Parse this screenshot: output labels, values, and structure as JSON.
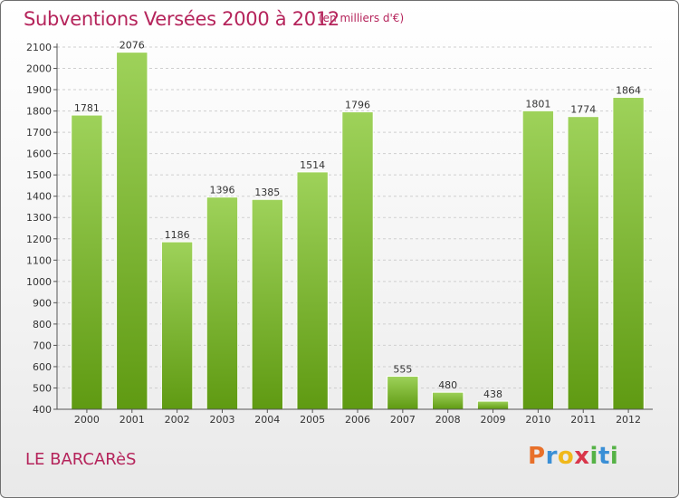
{
  "header": {
    "title": "Subventions Versées 2000 à 2012",
    "unit": "(en milliers d'€)"
  },
  "footer": {
    "place": "LE BARCARèS",
    "logo": "Proxiti"
  },
  "colors": {
    "accent": "#b5245b",
    "bar_top": "#9ed25a",
    "bar_bottom": "#5f9a12",
    "grid": "#cfcfcf"
  },
  "chart_data": {
    "type": "bar",
    "title": "Subventions Versées 2000 à 2012",
    "subtitle": "(en milliers d'€)",
    "xlabel": "",
    "ylabel": "",
    "categories": [
      "2000",
      "2001",
      "2002",
      "2003",
      "2004",
      "2005",
      "2006",
      "2007",
      "2008",
      "2009",
      "2010",
      "2011",
      "2012"
    ],
    "values": [
      1781,
      2076,
      1186,
      1396,
      1385,
      1514,
      1796,
      555,
      480,
      438,
      1801,
      1774,
      1864
    ],
    "ylim": [
      400,
      2100
    ],
    "yticks": [
      400,
      500,
      600,
      700,
      800,
      900,
      1000,
      1100,
      1200,
      1300,
      1400,
      1500,
      1600,
      1700,
      1800,
      1900,
      2000,
      2100
    ],
    "grid": true,
    "data_labels": true
  }
}
